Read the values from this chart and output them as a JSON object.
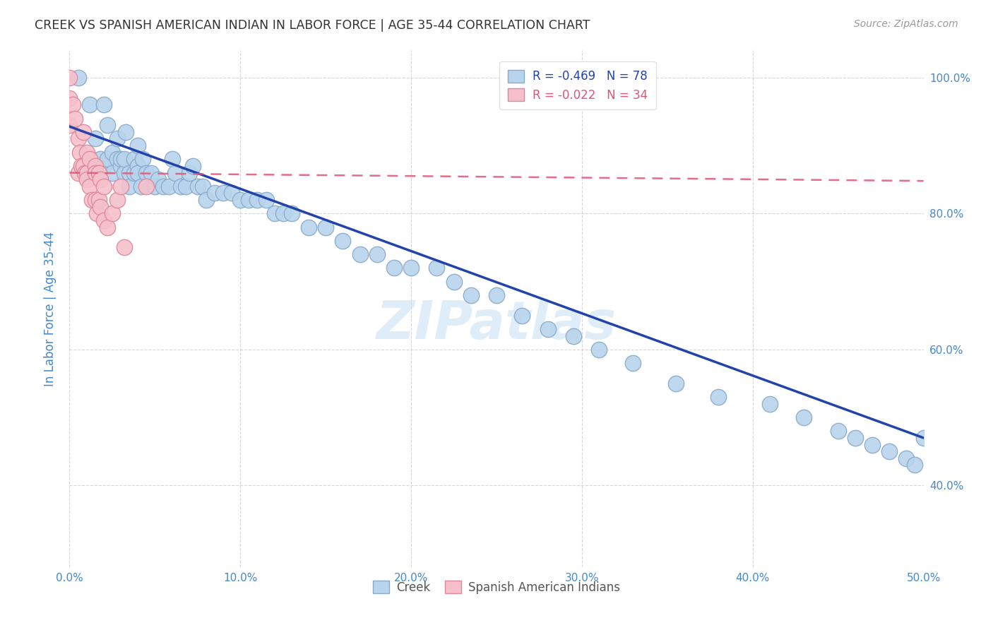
{
  "title": "CREEK VS SPANISH AMERICAN INDIAN IN LABOR FORCE | AGE 35-44 CORRELATION CHART",
  "source": "Source: ZipAtlas.com",
  "ylabel": "In Labor Force | Age 35-44",
  "xlim": [
    0.0,
    0.5
  ],
  "ylim": [
    0.28,
    1.04
  ],
  "ytick_labels": [
    "40.0%",
    "60.0%",
    "80.0%",
    "100.0%"
  ],
  "ytick_values": [
    0.4,
    0.6,
    0.8,
    1.0
  ],
  "xtick_labels": [
    "0.0%",
    "10.0%",
    "20.0%",
    "30.0%",
    "40.0%",
    "50.0%"
  ],
  "xtick_values": [
    0.0,
    0.1,
    0.2,
    0.3,
    0.4,
    0.5
  ],
  "legend_creek_R": "-0.469",
  "legend_creek_N": "78",
  "legend_spanish_R": "-0.022",
  "legend_spanish_N": "34",
  "creek_color": "#b8d4ec",
  "creek_edge_color": "#88aacc",
  "spanish_color": "#f5c0cc",
  "spanish_edge_color": "#dd8899",
  "creek_line_color": "#2244aa",
  "spanish_line_color": "#dd5577",
  "background_color": "#ffffff",
  "grid_color": "#cccccc",
  "title_color": "#333333",
  "right_axis_label_color": "#4488cc",
  "left_axis_label_color": "#4488cc",
  "creek_line_y0": 0.928,
  "creek_line_y1": 0.47,
  "spanish_line_y0": 0.86,
  "spanish_line_y1": 0.848,
  "creek_scatter_x": [
    0.005,
    0.012,
    0.015,
    0.018,
    0.02,
    0.02,
    0.022,
    0.022,
    0.025,
    0.025,
    0.028,
    0.028,
    0.03,
    0.03,
    0.032,
    0.032,
    0.033,
    0.035,
    0.035,
    0.038,
    0.038,
    0.04,
    0.04,
    0.04,
    0.042,
    0.043,
    0.045,
    0.048,
    0.05,
    0.052,
    0.055,
    0.058,
    0.06,
    0.062,
    0.065,
    0.068,
    0.07,
    0.072,
    0.075,
    0.078,
    0.08,
    0.085,
    0.09,
    0.095,
    0.1,
    0.105,
    0.11,
    0.115,
    0.12,
    0.125,
    0.13,
    0.14,
    0.15,
    0.16,
    0.17,
    0.18,
    0.19,
    0.2,
    0.215,
    0.225,
    0.235,
    0.25,
    0.265,
    0.28,
    0.295,
    0.31,
    0.33,
    0.355,
    0.38,
    0.41,
    0.43,
    0.45,
    0.46,
    0.47,
    0.48,
    0.49,
    0.495,
    0.5
  ],
  "creek_scatter_y": [
    1.0,
    0.96,
    0.91,
    0.88,
    0.96,
    0.87,
    0.93,
    0.88,
    0.89,
    0.86,
    0.91,
    0.88,
    0.87,
    0.88,
    0.86,
    0.88,
    0.92,
    0.86,
    0.84,
    0.88,
    0.86,
    0.9,
    0.87,
    0.86,
    0.84,
    0.88,
    0.86,
    0.86,
    0.84,
    0.85,
    0.84,
    0.84,
    0.88,
    0.86,
    0.84,
    0.84,
    0.86,
    0.87,
    0.84,
    0.84,
    0.82,
    0.83,
    0.83,
    0.83,
    0.82,
    0.82,
    0.82,
    0.82,
    0.8,
    0.8,
    0.8,
    0.78,
    0.78,
    0.76,
    0.74,
    0.74,
    0.72,
    0.72,
    0.72,
    0.7,
    0.68,
    0.68,
    0.65,
    0.63,
    0.62,
    0.6,
    0.58,
    0.55,
    0.53,
    0.52,
    0.5,
    0.48,
    0.47,
    0.46,
    0.45,
    0.44,
    0.43,
    0.47
  ],
  "spanish_scatter_x": [
    0.0,
    0.0,
    0.0,
    0.002,
    0.003,
    0.005,
    0.005,
    0.006,
    0.007,
    0.008,
    0.008,
    0.009,
    0.01,
    0.01,
    0.01,
    0.012,
    0.012,
    0.013,
    0.015,
    0.015,
    0.015,
    0.016,
    0.017,
    0.017,
    0.018,
    0.018,
    0.02,
    0.02,
    0.022,
    0.025,
    0.028,
    0.03,
    0.032,
    0.045
  ],
  "spanish_scatter_y": [
    1.0,
    0.97,
    0.93,
    0.96,
    0.94,
    0.91,
    0.86,
    0.89,
    0.87,
    0.92,
    0.87,
    0.86,
    0.89,
    0.86,
    0.85,
    0.88,
    0.84,
    0.82,
    0.87,
    0.86,
    0.82,
    0.8,
    0.86,
    0.82,
    0.85,
    0.81,
    0.84,
    0.79,
    0.78,
    0.8,
    0.82,
    0.84,
    0.75,
    0.84
  ],
  "watermark": "ZIPatlas"
}
